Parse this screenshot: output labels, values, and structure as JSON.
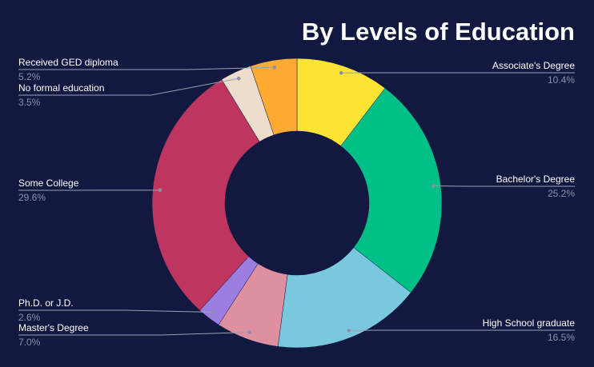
{
  "chart_data": {
    "type": "pie",
    "donut": true,
    "title": "By Levels of Education",
    "slices": [
      {
        "label": "Associate's Degree",
        "value": 10.4,
        "display": "10.4%",
        "color": "#FDE333"
      },
      {
        "label": "Bachelor's Degree",
        "value": 25.2,
        "display": "25.2%",
        "color": "#00C088"
      },
      {
        "label": "High School graduate",
        "value": 16.5,
        "display": "16.5%",
        "color": "#7AC8DD"
      },
      {
        "label": "Master's Degree",
        "value": 7.0,
        "display": "7.0%",
        "color": "#DE8FA0"
      },
      {
        "label": "Ph.D. or J.D.",
        "value": 2.6,
        "display": "2.6%",
        "color": "#9B7FE0"
      },
      {
        "label": "Some College",
        "value": 29.6,
        "display": "29.6%",
        "color": "#BE3560"
      },
      {
        "label": "No formal education",
        "value": 3.5,
        "display": "3.5%",
        "color": "#EEDDCC"
      },
      {
        "label": "Received GED diploma",
        "value": 5.2,
        "display": "5.2%",
        "color": "#FFAA33"
      }
    ],
    "background": "#111940",
    "legend": "none"
  }
}
